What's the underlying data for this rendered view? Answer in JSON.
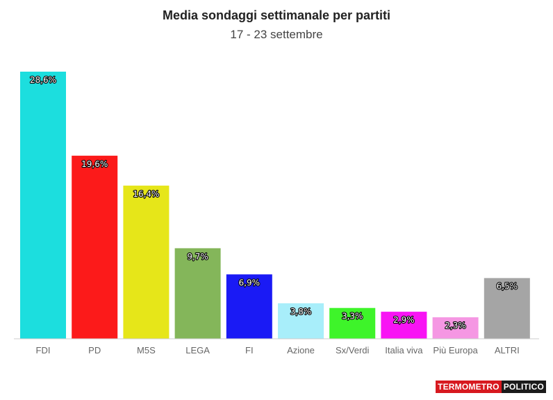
{
  "header": {
    "title": "Media sondaggi settimanale per partiti",
    "subtitle": "17 - 23 settembre"
  },
  "logo": {
    "part1": "TERMOMETRO",
    "part2": "POLITICO"
  },
  "chart_data": {
    "type": "bar",
    "categories": [
      "FDI",
      "PD",
      "M5S",
      "LEGA",
      "FI",
      "Azione",
      "Sx/Verdi",
      "Italia viva",
      "Più Europa",
      "ALTRI"
    ],
    "values": [
      28.6,
      19.6,
      16.4,
      9.7,
      6.9,
      3.8,
      3.3,
      2.9,
      2.3,
      6.5
    ],
    "labels": [
      "28,6%",
      "19,6%",
      "16,4%",
      "9,7%",
      "6,9%",
      "3,8%",
      "3,3%",
      "2,9%",
      "2,3%",
      "6,5%"
    ],
    "colors": [
      "#1cdede",
      "#fc1a1a",
      "#e6e619",
      "#84b65a",
      "#1a1af5",
      "#a8eefa",
      "#3ef42a",
      "#f814f4",
      "#f597e3",
      "#a5a5a5"
    ],
    "title": "Media sondaggi settimanale per partiti",
    "subtitle": "17 - 23 settembre",
    "xlabel": "",
    "ylabel": "",
    "ylim": [
      0,
      28.6
    ],
    "grid": false,
    "legend": "none"
  }
}
